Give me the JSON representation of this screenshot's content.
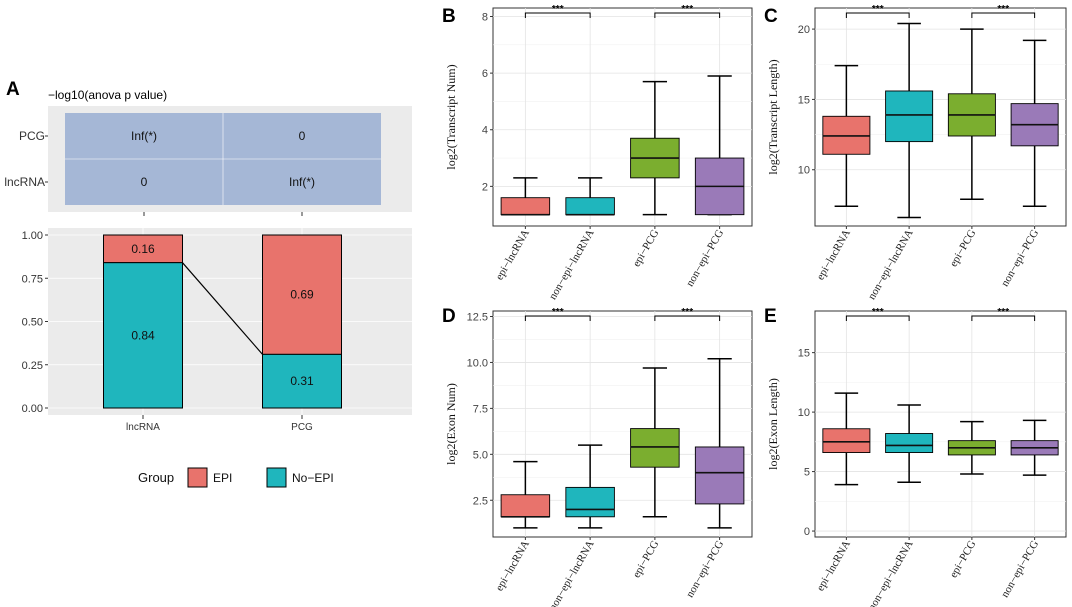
{
  "chart_data": [
    {
      "panel": "A",
      "type": "heatmap",
      "title": "−log10(anova p value)",
      "rows": [
        "PCG",
        "lncRNA"
      ],
      "cells": [
        [
          "Inf(*)",
          "0"
        ],
        [
          "0",
          "Inf(*)"
        ]
      ],
      "fill_color": "#A5B7D6"
    },
    {
      "panel": "A",
      "type": "bar",
      "stacked": true,
      "categories": [
        "lncRNA",
        "PCG"
      ],
      "series": [
        {
          "name": "EPI",
          "values": [
            0.16,
            0.69
          ],
          "labels": [
            "0.16",
            "0.69"
          ],
          "color": "#E8736C"
        },
        {
          "name": "No−EPI",
          "values": [
            0.84,
            0.31
          ],
          "labels": [
            "0.84",
            "0.31"
          ],
          "color": "#1FB6BD"
        }
      ],
      "yticks": [
        "0.00",
        "0.25",
        "0.50",
        "0.75",
        "1.00"
      ],
      "ylim": [
        0,
        1
      ],
      "legend_title": "Group",
      "legend": [
        "EPI",
        "No−EPI"
      ],
      "legend_position": "bottom"
    },
    {
      "panel": "B",
      "type": "box",
      "ylabel": "log2(Transcript Num)",
      "categories": [
        "epi−lncRNA",
        "non−epi−lncRNA",
        "epi−PCG",
        "non−epi−PCG"
      ],
      "ylim": [
        0.6,
        8.3
      ],
      "yticks": [
        2,
        4,
        6,
        8
      ],
      "boxes": [
        {
          "min": 1,
          "q1": 1,
          "median": 1,
          "q3": 1.6,
          "max": 2.3
        },
        {
          "min": 1,
          "q1": 1,
          "median": 1,
          "q3": 1.6,
          "max": 2.3
        },
        {
          "min": 1,
          "q1": 2.3,
          "median": 3.0,
          "q3": 3.7,
          "max": 5.7
        },
        {
          "min": 1,
          "q1": 1,
          "median": 2.0,
          "q3": 3.0,
          "max": 5.9
        }
      ],
      "significance": [
        {
          "from": 0,
          "to": 1,
          "label": "***"
        },
        {
          "from": 2,
          "to": 3,
          "label": "***"
        }
      ]
    },
    {
      "panel": "C",
      "type": "box",
      "ylabel": "log2(Transcript Length)",
      "categories": [
        "epi−lncRNA",
        "non−epi−lncRNA",
        "epi−PCG",
        "non−epi−PCG"
      ],
      "ylim": [
        6.0,
        21.5
      ],
      "yticks": [
        10,
        15,
        20
      ],
      "boxes": [
        {
          "min": 7.4,
          "q1": 11.1,
          "median": 12.4,
          "q3": 13.8,
          "max": 17.4
        },
        {
          "min": 6.6,
          "q1": 12.0,
          "median": 13.9,
          "q3": 15.6,
          "max": 20.4
        },
        {
          "min": 7.9,
          "q1": 12.4,
          "median": 13.9,
          "q3": 15.4,
          "max": 20.0
        },
        {
          "min": 7.4,
          "q1": 11.7,
          "median": 13.2,
          "q3": 14.7,
          "max": 19.2
        }
      ],
      "significance": [
        {
          "from": 0,
          "to": 1,
          "label": "***"
        },
        {
          "from": 2,
          "to": 3,
          "label": "***"
        }
      ]
    },
    {
      "panel": "D",
      "type": "box",
      "ylabel": "log2(Exon Num)",
      "categories": [
        "epi−lncRNA",
        "non−epi−lncRNA",
        "epi−PCG",
        "non−epi−PCG"
      ],
      "ylim": [
        0.5,
        12.8
      ],
      "yticks": [
        2.5,
        5.0,
        7.5,
        10.0,
        12.5
      ],
      "ytick_labels": [
        "2.5",
        "5.0",
        "7.5",
        "10.0",
        "12.5"
      ],
      "boxes": [
        {
          "min": 1.0,
          "q1": 1.6,
          "median": 1.6,
          "q3": 2.8,
          "max": 4.6
        },
        {
          "min": 1.0,
          "q1": 1.6,
          "median": 2.0,
          "q3": 3.2,
          "max": 5.5
        },
        {
          "min": 1.6,
          "q1": 4.3,
          "median": 5.4,
          "q3": 6.4,
          "max": 9.7
        },
        {
          "min": 1.0,
          "q1": 2.3,
          "median": 4.0,
          "q3": 5.4,
          "max": 10.2
        }
      ],
      "significance": [
        {
          "from": 0,
          "to": 1,
          "label": "***"
        },
        {
          "from": 2,
          "to": 3,
          "label": "***"
        }
      ]
    },
    {
      "panel": "E",
      "type": "box",
      "ylabel": "log2(Exon Length)",
      "categories": [
        "epi−lncRNA",
        "non−epi−lncRNA",
        "epi−PCG",
        "non−epi−PCG"
      ],
      "ylim": [
        -0.5,
        18.5
      ],
      "yticks": [
        0,
        5,
        10,
        15
      ],
      "boxes": [
        {
          "min": 3.9,
          "q1": 6.6,
          "median": 7.5,
          "q3": 8.6,
          "max": 11.6
        },
        {
          "min": 4.1,
          "q1": 6.6,
          "median": 7.2,
          "q3": 8.2,
          "max": 10.6
        },
        {
          "min": 4.8,
          "q1": 6.4,
          "median": 7.0,
          "q3": 7.6,
          "max": 9.2
        },
        {
          "min": 4.7,
          "q1": 6.4,
          "median": 7.0,
          "q3": 7.6,
          "max": 9.3
        }
      ],
      "significance": [
        {
          "from": 0,
          "to": 1,
          "label": "***"
        },
        {
          "from": 2,
          "to": 3,
          "label": "***"
        }
      ]
    }
  ],
  "panel_labels": [
    "A",
    "B",
    "C",
    "D",
    "E"
  ],
  "box_colors": [
    "#E8736C",
    "#1FB6BD",
    "#7BAE2F",
    "#9A7AB8"
  ],
  "grid_color": "#EBEBEB"
}
